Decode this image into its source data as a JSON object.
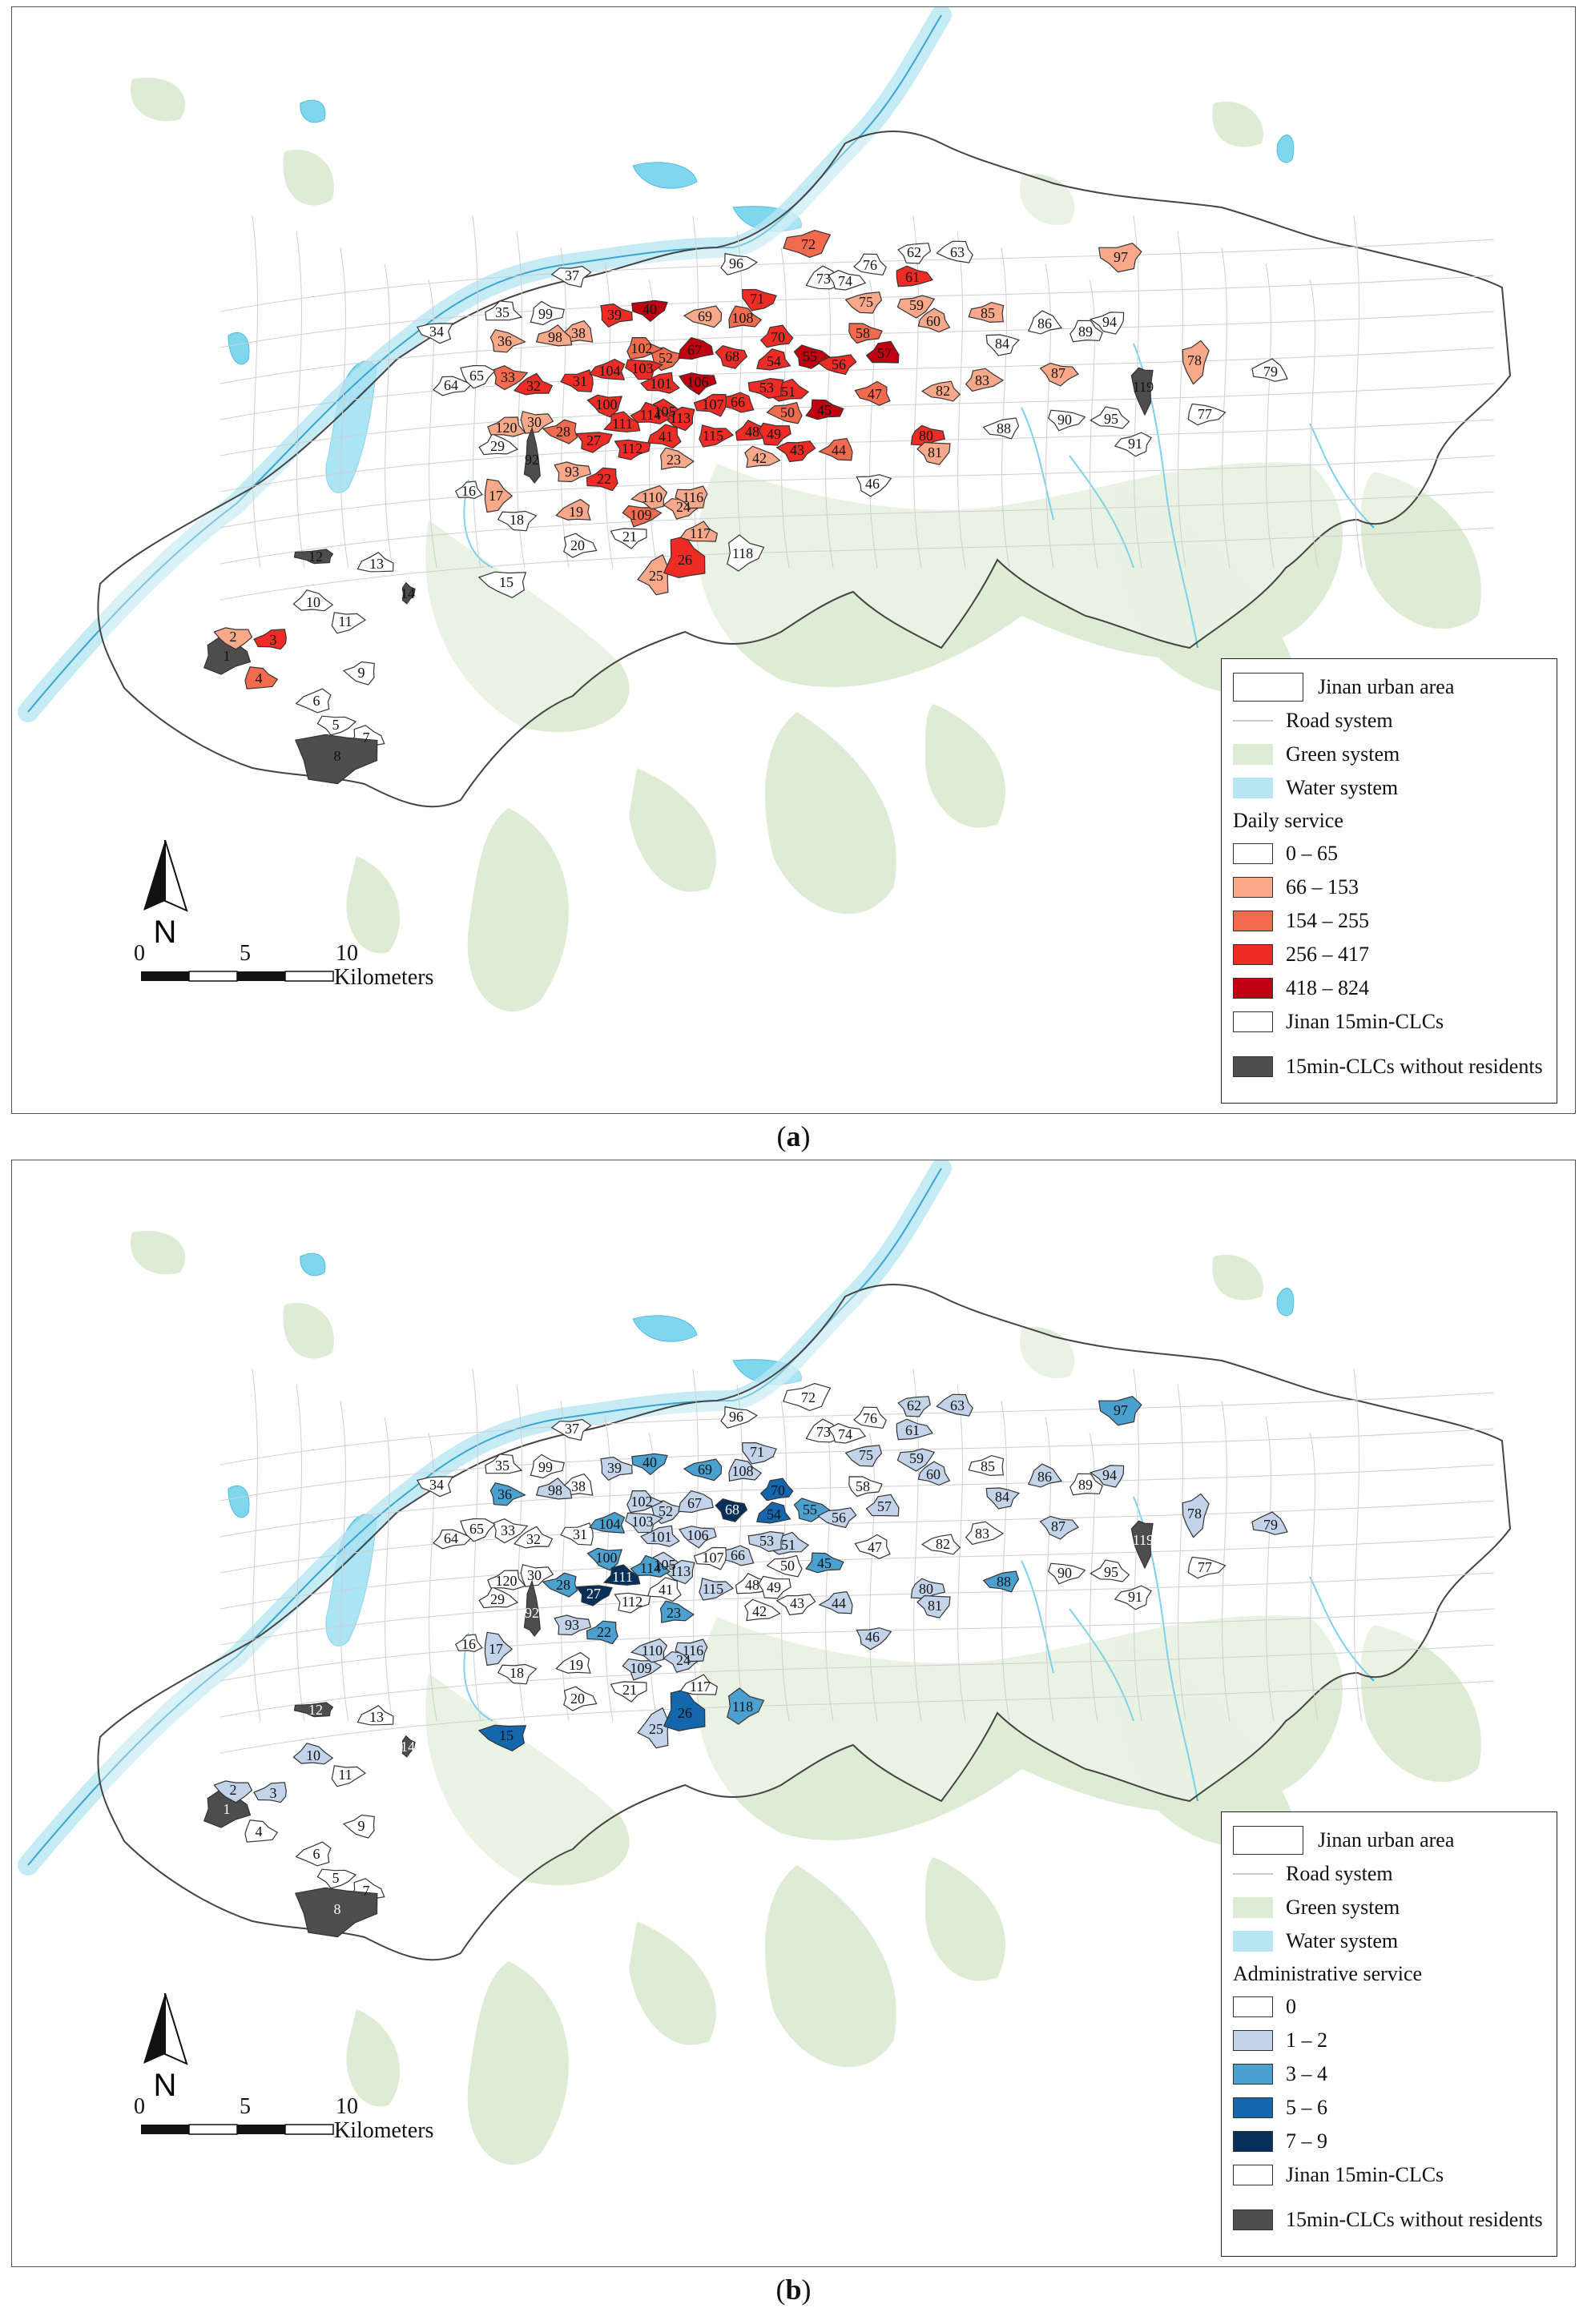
{
  "panels": [
    {
      "id": "a",
      "caption_letter": "a",
      "legend": {
        "base": [
          {
            "label": "Jinan urban area",
            "kind": "box"
          },
          {
            "label": "Road system",
            "kind": "line",
            "color": "#c9c9c9"
          },
          {
            "label": "Green system",
            "kind": "fill",
            "color": "#dcebd3"
          },
          {
            "label": "Water system",
            "kind": "fill",
            "color": "#b7e6f3"
          }
        ],
        "title": "Daily service",
        "classes": [
          {
            "label": "0 – 65",
            "color": "#ffffff"
          },
          {
            "label": "66 – 153",
            "color": "#f9a98a"
          },
          {
            "label": "154 – 255",
            "color": "#f26b4e"
          },
          {
            "label": "256 – 417",
            "color": "#ee2c25"
          },
          {
            "label": "418 – 824",
            "color": "#c00010"
          }
        ],
        "extra": [
          {
            "label": "Jinan 15min-CLCs",
            "color": "#ffffff"
          },
          {
            "label": "15min-CLCs without residents",
            "color": "#4d4d4d"
          }
        ]
      },
      "north_label": "N",
      "scale": {
        "ticks": [
          "0",
          "5",
          "10"
        ],
        "unit": "Kilometers"
      }
    },
    {
      "id": "b",
      "caption_letter": "b",
      "legend": {
        "base": [
          {
            "label": "Jinan urban area",
            "kind": "box"
          },
          {
            "label": "Road system",
            "kind": "line",
            "color": "#c9c9c9"
          },
          {
            "label": "Green system",
            "kind": "fill",
            "color": "#dcebd3"
          },
          {
            "label": "Water system",
            "kind": "fill",
            "color": "#b7e6f3"
          }
        ],
        "title": "Administrative service",
        "classes": [
          {
            "label": "0",
            "color": "#ffffff"
          },
          {
            "label": "1 – 2",
            "color": "#c3d4ea"
          },
          {
            "label": "3 – 4",
            "color": "#4aa0cf"
          },
          {
            "label": "5 – 6",
            "color": "#1567ad"
          },
          {
            "label": "7 – 9",
            "color": "#06305a"
          }
        ],
        "extra": [
          {
            "label": "Jinan 15min-CLCs",
            "color": "#ffffff"
          },
          {
            "label": "15min-CLCs without residents",
            "color": "#4d4d4d"
          }
        ]
      },
      "north_label": "N",
      "scale": {
        "ticks": [
          "0",
          "5",
          "10"
        ],
        "unit": "Kilometers"
      }
    }
  ],
  "units": {
    "1": {
      "a": 5,
      "b": 5
    },
    "2": {
      "a": 1,
      "b": 1
    },
    "3": {
      "a": 3,
      "b": 1
    },
    "4": {
      "a": 2,
      "b": 0
    },
    "5": {
      "a": 0,
      "b": 0
    },
    "6": {
      "a": 0,
      "b": 0
    },
    "7": {
      "a": 0,
      "b": 0
    },
    "8": {
      "a": 5,
      "b": 5
    },
    "9": {
      "a": 0,
      "b": 0
    },
    "10": {
      "a": 0,
      "b": 1
    },
    "11": {
      "a": 0,
      "b": 0
    },
    "12": {
      "a": 5,
      "b": 5
    },
    "13": {
      "a": 0,
      "b": 0
    },
    "14": {
      "a": 5,
      "b": 5
    },
    "15": {
      "a": 0,
      "b": 3
    },
    "16": {
      "a": 0,
      "b": 0
    },
    "17": {
      "a": 1,
      "b": 1
    },
    "18": {
      "a": 0,
      "b": 0
    },
    "19": {
      "a": 1,
      "b": 0
    },
    "20": {
      "a": 0,
      "b": 0
    },
    "21": {
      "a": 0,
      "b": 0
    },
    "22": {
      "a": 3,
      "b": 2
    },
    "23": {
      "a": 1,
      "b": 2
    },
    "24": {
      "a": 1,
      "b": 1
    },
    "25": {
      "a": 1,
      "b": 1
    },
    "26": {
      "a": 3,
      "b": 3
    },
    "27": {
      "a": 3,
      "b": 4
    },
    "28": {
      "a": 2,
      "b": 2
    },
    "29": {
      "a": 0,
      "b": 0
    },
    "30": {
      "a": 1,
      "b": 0
    },
    "31": {
      "a": 3,
      "b": 0
    },
    "32": {
      "a": 3,
      "b": 0
    },
    "33": {
      "a": 2,
      "b": 0
    },
    "34": {
      "a": 0,
      "b": 0
    },
    "35": {
      "a": 0,
      "b": 0
    },
    "36": {
      "a": 1,
      "b": 2
    },
    "37": {
      "a": 0,
      "b": 0
    },
    "38": {
      "a": 1,
      "b": 0
    },
    "39": {
      "a": 3,
      "b": 1
    },
    "40": {
      "a": 4,
      "b": 2
    },
    "41": {
      "a": 3,
      "b": 0
    },
    "42": {
      "a": 1,
      "b": 0
    },
    "43": {
      "a": 3,
      "b": 0
    },
    "44": {
      "a": 2,
      "b": 1
    },
    "45": {
      "a": 4,
      "b": 2
    },
    "46": {
      "a": 0,
      "b": 1
    },
    "47": {
      "a": 2,
      "b": 0
    },
    "48": {
      "a": 3,
      "b": 0
    },
    "49": {
      "a": 3,
      "b": 0
    },
    "50": {
      "a": 2,
      "b": 0
    },
    "51": {
      "a": 3,
      "b": 1
    },
    "52": {
      "a": 2,
      "b": 1
    },
    "53": {
      "a": 3,
      "b": 1
    },
    "54": {
      "a": 3,
      "b": 3
    },
    "55": {
      "a": 4,
      "b": 2
    },
    "56": {
      "a": 3,
      "b": 1
    },
    "57": {
      "a": 4,
      "b": 1
    },
    "58": {
      "a": 2,
      "b": 0
    },
    "59": {
      "a": 1,
      "b": 1
    },
    "60": {
      "a": 1,
      "b": 1
    },
    "61": {
      "a": 3,
      "b": 1
    },
    "62": {
      "a": 0,
      "b": 1
    },
    "63": {
      "a": 0,
      "b": 1
    },
    "64": {
      "a": 0,
      "b": 0
    },
    "65": {
      "a": 0,
      "b": 0
    },
    "66": {
      "a": 3,
      "b": 1
    },
    "67": {
      "a": 4,
      "b": 1
    },
    "68": {
      "a": 3,
      "b": 4
    },
    "69": {
      "a": 1,
      "b": 2
    },
    "70": {
      "a": 3,
      "b": 3
    },
    "71": {
      "a": 3,
      "b": 1
    },
    "72": {
      "a": 2,
      "b": 0
    },
    "73": {
      "a": 0,
      "b": 0
    },
    "74": {
      "a": 0,
      "b": 0
    },
    "75": {
      "a": 1,
      "b": 1
    },
    "76": {
      "a": 0,
      "b": 0
    },
    "77": {
      "a": 0,
      "b": 0
    },
    "78": {
      "a": 1,
      "b": 1
    },
    "79": {
      "a": 0,
      "b": 1
    },
    "80": {
      "a": 3,
      "b": 1
    },
    "81": {
      "a": 1,
      "b": 1
    },
    "82": {
      "a": 1,
      "b": 0
    },
    "83": {
      "a": 1,
      "b": 0
    },
    "84": {
      "a": 0,
      "b": 1
    },
    "85": {
      "a": 1,
      "b": 0
    },
    "86": {
      "a": 0,
      "b": 1
    },
    "87": {
      "a": 1,
      "b": 1
    },
    "88": {
      "a": 0,
      "b": 2
    },
    "89": {
      "a": 0,
      "b": 0
    },
    "90": {
      "a": 0,
      "b": 0
    },
    "91": {
      "a": 0,
      "b": 0
    },
    "92": {
      "a": 5,
      "b": 5
    },
    "93": {
      "a": 1,
      "b": 1
    },
    "94": {
      "a": 0,
      "b": 1
    },
    "95": {
      "a": 0,
      "b": 0
    },
    "96": {
      "a": 0,
      "b": 0
    },
    "97": {
      "a": 1,
      "b": 2
    },
    "98": {
      "a": 1,
      "b": 1
    },
    "99": {
      "a": 0,
      "b": 0
    },
    "100": {
      "a": 3,
      "b": 2
    },
    "101": {
      "a": 3,
      "b": 1
    },
    "102": {
      "a": 2,
      "b": 1
    },
    "103": {
      "a": 3,
      "b": 1
    },
    "104": {
      "a": 3,
      "b": 2
    },
    "105": {
      "a": 3,
      "b": 1
    },
    "106": {
      "a": 4,
      "b": 1
    },
    "107": {
      "a": 3,
      "b": 0
    },
    "108": {
      "a": 2,
      "b": 1
    },
    "109": {
      "a": 2,
      "b": 1
    },
    "110": {
      "a": 1,
      "b": 1
    },
    "111": {
      "a": 3,
      "b": 4
    },
    "112": {
      "a": 3,
      "b": 0
    },
    "113": {
      "a": 3,
      "b": 1
    },
    "114": {
      "a": 3,
      "b": 2
    },
    "115": {
      "a": 3,
      "b": 1
    },
    "116": {
      "a": 1,
      "b": 1
    },
    "117": {
      "a": 1,
      "b": 0
    },
    "118": {
      "a": 0,
      "b": 2
    },
    "119": {
      "a": 5,
      "b": 5
    },
    "120": {
      "a": 1,
      "b": 0
    }
  }
}
